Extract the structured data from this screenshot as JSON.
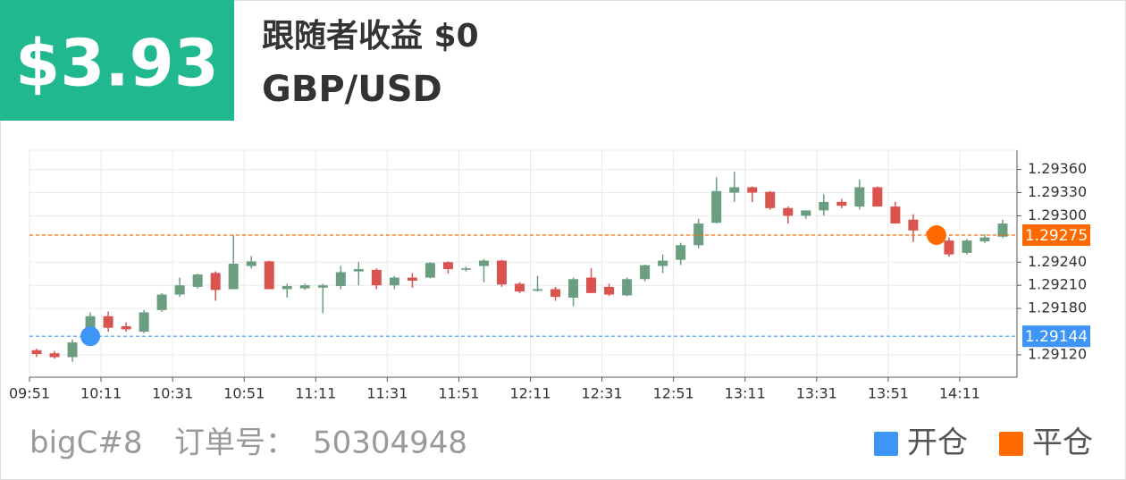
{
  "header": {
    "profit": "$3.93",
    "title": "跟随者收益 $0",
    "symbol": "GBP/USD"
  },
  "chart_data": {
    "type": "candlestick",
    "x": [
      593,
      598,
      603,
      608,
      613,
      618,
      623,
      628,
      633,
      638,
      643,
      648,
      653,
      658,
      663,
      668,
      673,
      678,
      683,
      688,
      693,
      698,
      703,
      708,
      713,
      718,
      723,
      728,
      733,
      738,
      743,
      748,
      753,
      758,
      763,
      768,
      773,
      778,
      783,
      788,
      793,
      798,
      803,
      808,
      813,
      818,
      823,
      828,
      833,
      838,
      843,
      848,
      853,
      858,
      863
    ],
    "open": [
      1.29126,
      1.29122,
      1.29117,
      1.29155,
      1.2917,
      1.29157,
      1.2915,
      1.29178,
      1.29198,
      1.29208,
      1.29226,
      1.29205,
      1.29235,
      1.29241,
      1.29205,
      1.29206,
      1.29207,
      1.29209,
      1.29228,
      1.2923,
      1.2921,
      1.2922,
      1.2922,
      1.2924,
      1.29231,
      1.29235,
      1.29242,
      1.29212,
      1.29203,
      1.29205,
      1.29194,
      1.2922,
      1.29208,
      1.29197,
      1.29218,
      1.29235,
      1.29243,
      1.29262,
      1.29291,
      1.2933,
      1.29337,
      1.29331,
      1.2931,
      1.293,
      1.29307,
      1.29318,
      1.29312,
      1.29337,
      1.29312,
      1.29295,
      1.2928,
      1.29268,
      1.29252,
      1.29267,
      1.29273
    ],
    "high": [
      1.29128,
      1.29125,
      1.2914,
      1.29175,
      1.29176,
      1.29162,
      1.29178,
      1.292,
      1.2922,
      1.29225,
      1.29228,
      1.29275,
      1.29248,
      1.29242,
      1.29212,
      1.29212,
      1.29212,
      1.29235,
      1.2924,
      1.29232,
      1.29222,
      1.29226,
      1.2924,
      1.29241,
      1.29234,
      1.29244,
      1.29243,
      1.29214,
      1.29222,
      1.29208,
      1.2922,
      1.29232,
      1.29212,
      1.2922,
      1.29237,
      1.2925,
      1.29265,
      1.29296,
      1.2935,
      1.29357,
      1.29338,
      1.29332,
      1.29312,
      1.29306,
      1.29328,
      1.29322,
      1.29347,
      1.29338,
      1.29318,
      1.29302,
      1.29284,
      1.29272,
      1.2927,
      1.29276,
      1.29295
    ],
    "low": [
      1.29117,
      1.29115,
      1.29111,
      1.2914,
      1.2915,
      1.2915,
      1.29148,
      1.29176,
      1.29195,
      1.29206,
      1.2919,
      1.29205,
      1.29232,
      1.29205,
      1.29194,
      1.29204,
      1.29174,
      1.29205,
      1.2921,
      1.29205,
      1.29205,
      1.29207,
      1.29219,
      1.29225,
      1.29228,
      1.29214,
      1.29208,
      1.292,
      1.29202,
      1.2919,
      1.29183,
      1.292,
      1.29196,
      1.29196,
      1.29215,
      1.29226,
      1.29236,
      1.29258,
      1.2929,
      1.29318,
      1.29318,
      1.29308,
      1.2929,
      1.29296,
      1.293,
      1.2931,
      1.29308,
      1.29312,
      1.2929,
      1.29266,
      1.29272,
      1.29247,
      1.2925,
      1.29265,
      1.29271
    ],
    "close": [
      1.29121,
      1.29117,
      1.29136,
      1.2917,
      1.29155,
      1.29153,
      1.29175,
      1.29198,
      1.2921,
      1.29224,
      1.29204,
      1.29238,
      1.29241,
      1.29205,
      1.29209,
      1.2921,
      1.2921,
      1.29227,
      1.29231,
      1.2921,
      1.2922,
      1.29216,
      1.29239,
      1.29231,
      1.29232,
      1.29242,
      1.29211,
      1.29202,
      1.29205,
      1.29195,
      1.29218,
      1.292,
      1.29198,
      1.29218,
      1.29236,
      1.29242,
      1.29262,
      1.2929,
      1.29332,
      1.29337,
      1.2933,
      1.2931,
      1.293,
      1.29307,
      1.29318,
      1.29313,
      1.29337,
      1.29312,
      1.2929,
      1.29281,
      1.29276,
      1.2925,
      1.29268,
      1.29272,
      1.2929
    ],
    "up_color": "#6b9e80",
    "down_color": "#d9534f",
    "xlim": [
      591,
      867
    ],
    "xticks": [
      {
        "value": 591,
        "label": "09:51"
      },
      {
        "value": 611,
        "label": "10:11"
      },
      {
        "value": 631,
        "label": "10:31"
      },
      {
        "value": 651,
        "label": "10:51"
      },
      {
        "value": 671,
        "label": "11:11"
      },
      {
        "value": 691,
        "label": "11:31"
      },
      {
        "value": 711,
        "label": "11:51"
      },
      {
        "value": 731,
        "label": "12:11"
      },
      {
        "value": 751,
        "label": "12:31"
      },
      {
        "value": 771,
        "label": "12:51"
      },
      {
        "value": 791,
        "label": "13:11"
      },
      {
        "value": 811,
        "label": "13:31"
      },
      {
        "value": 831,
        "label": "13:51"
      },
      {
        "value": 851,
        "label": "14:11"
      }
    ],
    "ylim": [
      1.29091,
      1.29385
    ],
    "yticks": [
      {
        "value": 1.2912,
        "label": "1.29120"
      },
      {
        "value": 1.2918,
        "label": "1.29180"
      },
      {
        "value": 1.2921,
        "label": "1.29210"
      },
      {
        "value": 1.2924,
        "label": "1.29240"
      },
      {
        "value": 1.293,
        "label": "1.29300"
      },
      {
        "value": 1.2933,
        "label": "1.29330"
      },
      {
        "value": 1.2936,
        "label": "1.29360"
      }
    ],
    "grid": true,
    "markers": [
      {
        "name": "开仓",
        "color": "#3d95f7",
        "x": 608,
        "y": 1.29144
      },
      {
        "name": "平仓",
        "color": "#ff6a00",
        "x": 844.5,
        "y": 1.29275
      }
    ]
  },
  "footer": {
    "trader": "bigC#8",
    "order_label": "订单号：",
    "order_id": "50304948"
  }
}
